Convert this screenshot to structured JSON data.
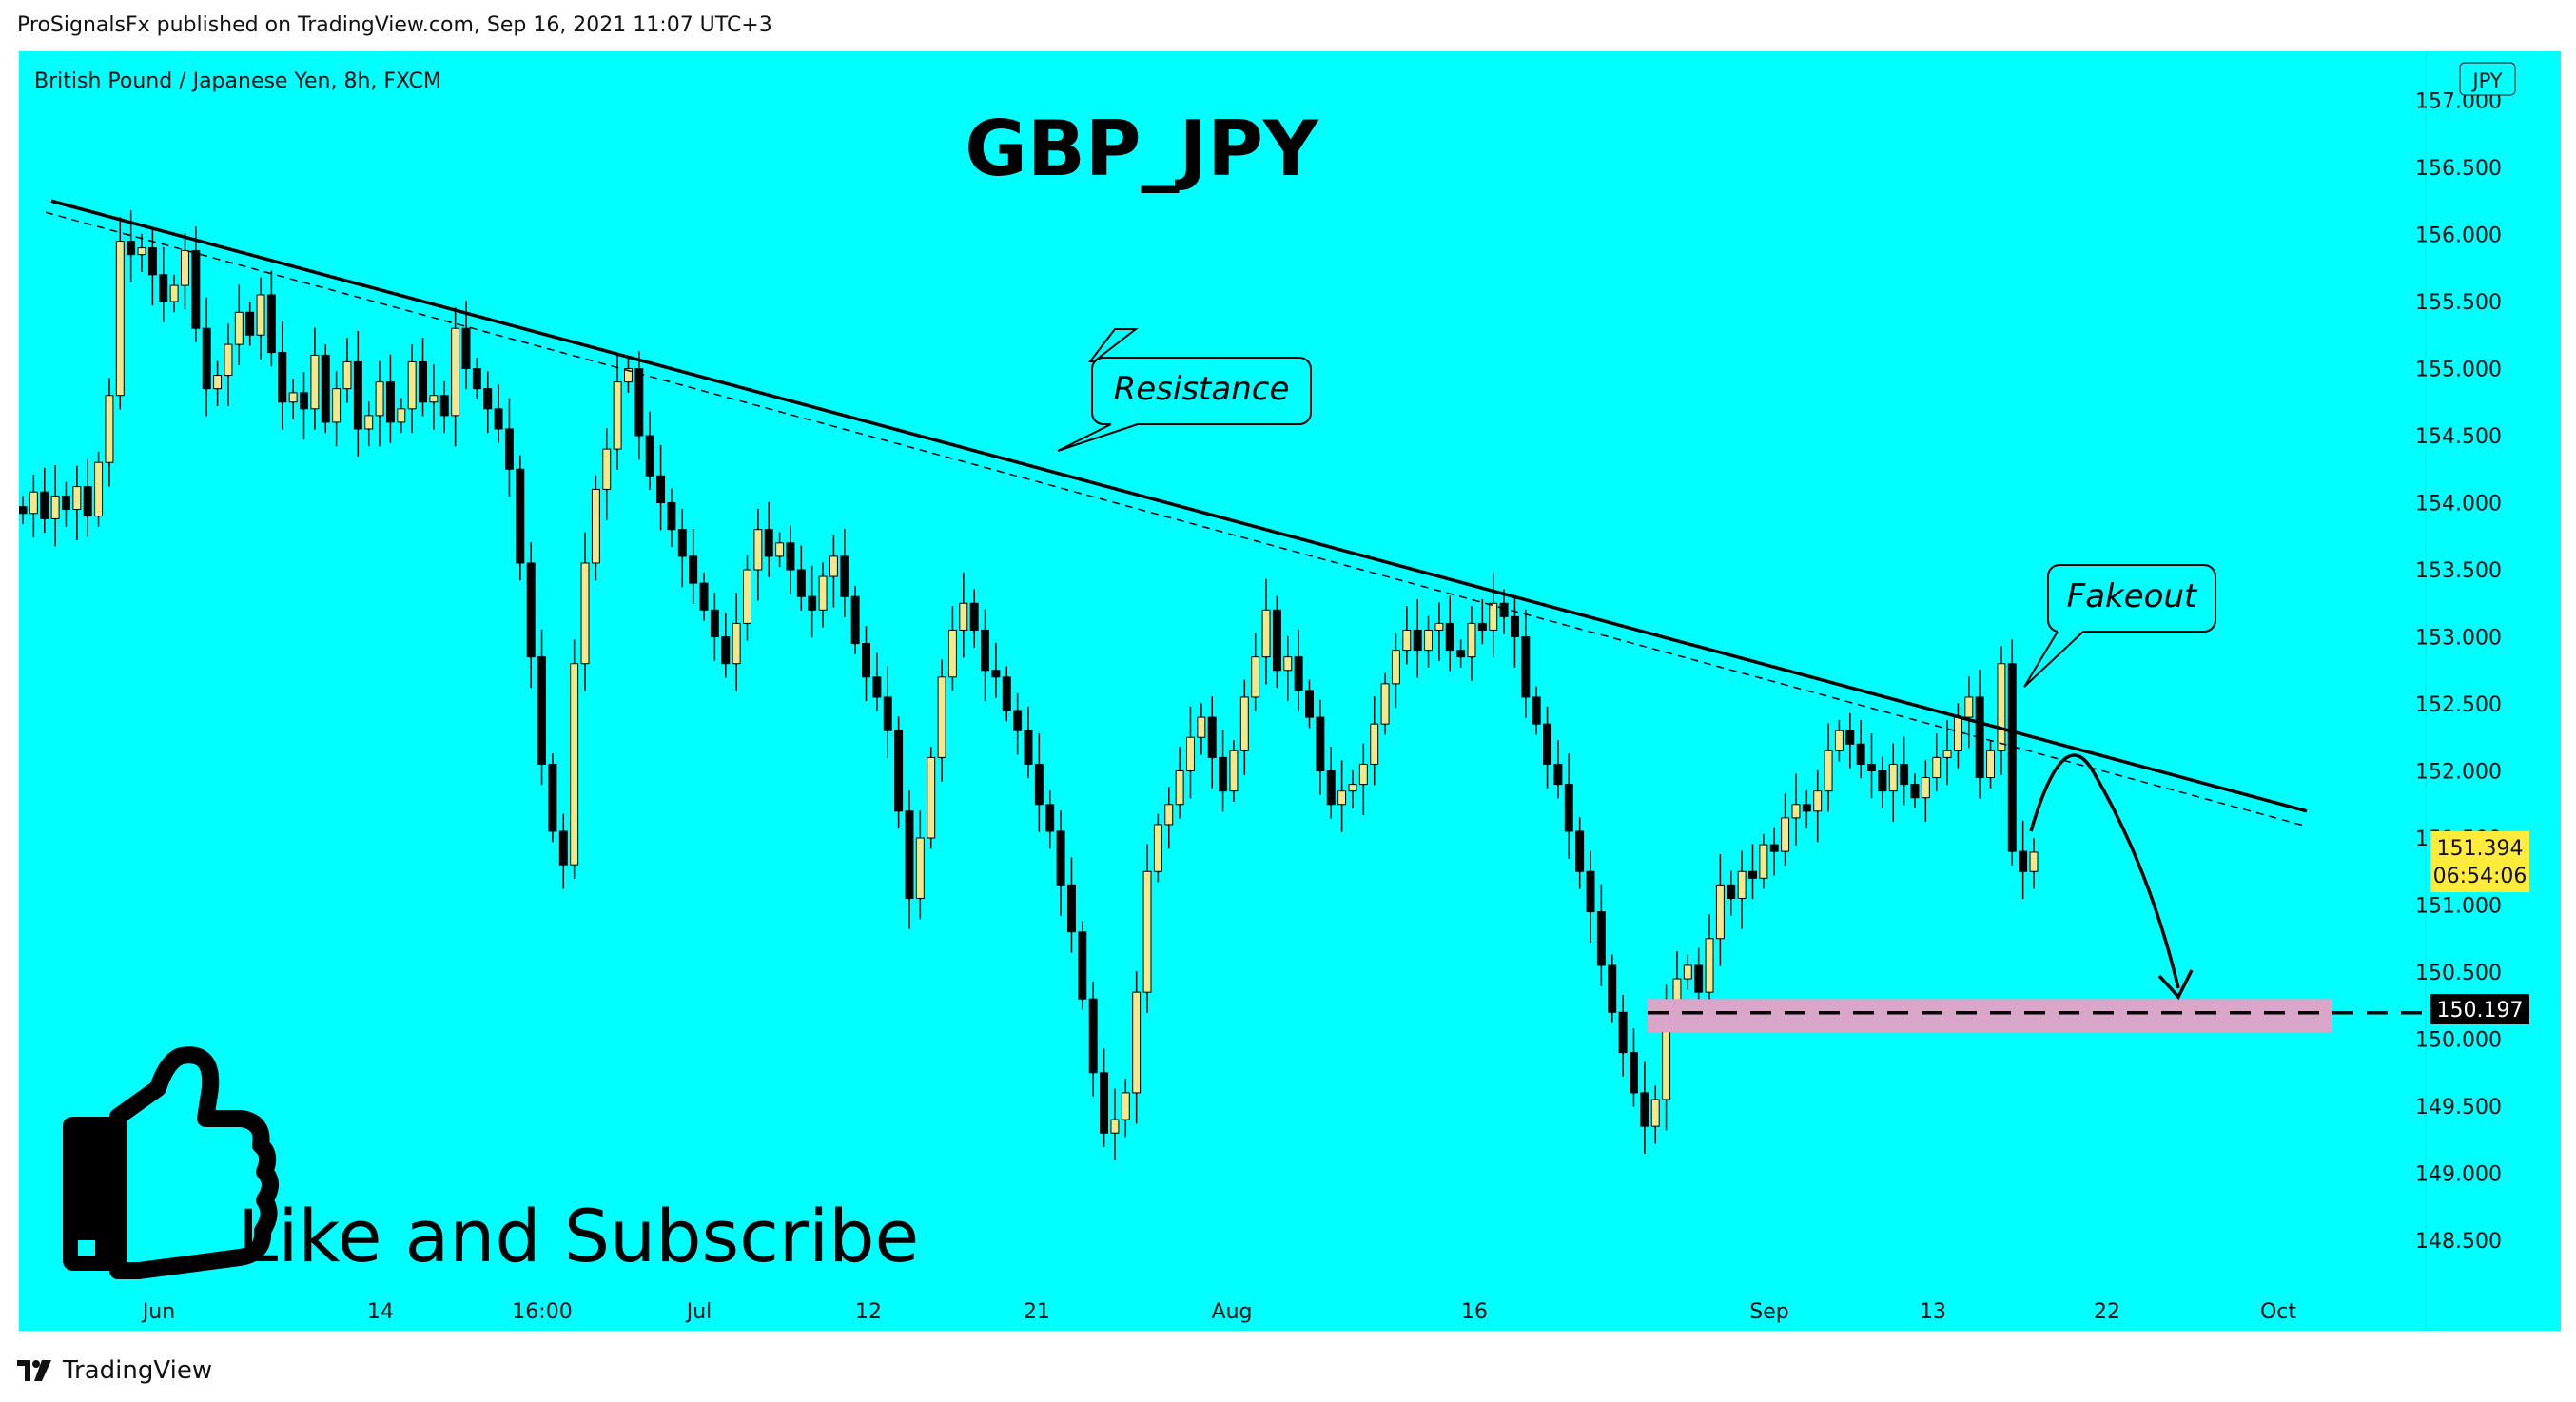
{
  "header": {
    "published": "ProSignalsFx published on TradingView.com, Sep 16, 2021 11:07 UTC+3"
  },
  "footer": {
    "brand": "TradingView",
    "logo_icon": "tradingview-logo-icon"
  },
  "symbol_line": "British Pound / Japanese Yen, 8h, FXCM",
  "title": "GBP_JPY",
  "currency_badge": "JPY",
  "colors": {
    "background": "#00FFFF",
    "candle_up": "#F6E88A",
    "candle_down": "#000000",
    "target_zone": "#D9A5C8",
    "price_label": "#FFEB3B"
  },
  "annotations": {
    "resistance": "Resistance",
    "fakeout": "Fakeout",
    "cta": "Like and Subscribe",
    "cta_icon": "thumbs-up-icon"
  },
  "price_labels": {
    "current_price": "151.394",
    "countdown": "06:54:06",
    "target_price": "150.197"
  },
  "chart_data": {
    "type": "candlestick",
    "title": "GBP_JPY",
    "subtitle": "British Pound / Japanese Yen, 8h, FXCM",
    "y_ticks": [
      "157.000",
      "156.500",
      "156.000",
      "155.500",
      "155.000",
      "154.500",
      "154.000",
      "153.500",
      "153.000",
      "152.500",
      "152.000",
      "151.500",
      "151.000",
      "150.500",
      "150.000",
      "149.500",
      "149.000",
      "148.500"
    ],
    "x_ticks": [
      "Jun",
      "14",
      "16:00",
      "Jul",
      "12",
      "21",
      "Aug",
      "16",
      "Sep",
      "13",
      "22",
      "Oct"
    ],
    "ylim": [
      148.2,
      157.2
    ],
    "closes": [
      153.92,
      154.08,
      153.88,
      154.05,
      153.95,
      154.12,
      153.9,
      154.3,
      154.8,
      155.95,
      155.85,
      155.9,
      155.7,
      155.5,
      155.62,
      155.88,
      155.3,
      154.85,
      154.95,
      155.18,
      155.42,
      155.25,
      155.55,
      155.12,
      154.75,
      154.82,
      154.7,
      155.1,
      154.6,
      154.85,
      155.05,
      154.55,
      154.65,
      154.9,
      154.6,
      154.7,
      155.05,
      154.75,
      154.8,
      154.65,
      155.3,
      155.0,
      154.85,
      154.7,
      154.55,
      154.25,
      153.55,
      152.85,
      152.05,
      151.55,
      151.3,
      152.8,
      153.55,
      154.1,
      154.4,
      154.9,
      155.0,
      154.5,
      154.2,
      154.0,
      153.8,
      153.6,
      153.4,
      153.2,
      153.0,
      152.8,
      153.1,
      153.5,
      153.8,
      153.6,
      153.7,
      153.5,
      153.3,
      153.2,
      153.45,
      153.6,
      153.3,
      152.95,
      152.7,
      152.55,
      152.3,
      151.7,
      151.05,
      151.5,
      152.1,
      152.7,
      153.05,
      153.25,
      153.05,
      152.75,
      152.7,
      152.45,
      152.3,
      152.05,
      151.75,
      151.55,
      151.15,
      150.8,
      150.3,
      149.75,
      149.3,
      149.4,
      149.6,
      150.35,
      151.25,
      151.6,
      151.75,
      152.0,
      152.25,
      152.4,
      152.1,
      151.85,
      152.15,
      152.55,
      152.85,
      153.2,
      152.75,
      152.85,
      152.6,
      152.4,
      152.0,
      151.75,
      151.85,
      151.9,
      152.05,
      152.35,
      152.65,
      152.9,
      153.05,
      152.9,
      153.05,
      153.1,
      152.9,
      152.85,
      153.1,
      153.05,
      153.25,
      153.15,
      153.0,
      152.55,
      152.35,
      152.05,
      151.9,
      151.55,
      151.25,
      150.95,
      150.55,
      150.2,
      149.9,
      149.6,
      149.35,
      149.55,
      150.25,
      150.45,
      150.55,
      150.35,
      150.75,
      151.15,
      151.05,
      151.25,
      151.2,
      151.45,
      151.4,
      151.65,
      151.75,
      151.7,
      151.85,
      152.15,
      152.3,
      152.2,
      152.05,
      152.0,
      151.85,
      152.05,
      151.9,
      151.8,
      151.95,
      152.1,
      152.15,
      152.4,
      152.55,
      151.95,
      152.15,
      152.8,
      151.4,
      151.25,
      151.394
    ],
    "resistance_line": {
      "from_price": 156.25,
      "to_price": 151.7,
      "label": "Resistance"
    },
    "target_level": 150.197,
    "target_zone": [
      150.05,
      150.3
    ]
  }
}
